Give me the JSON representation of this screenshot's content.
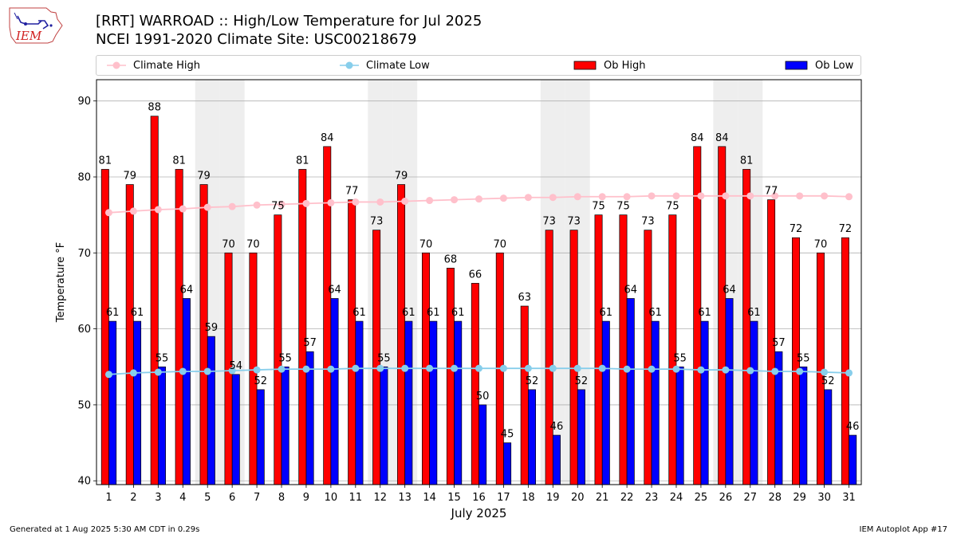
{
  "header": {
    "logo_text": "IEM",
    "title_line1": "[RRT] WARROAD :: High/Low Temperature for Jul 2025",
    "title_line2": "NCEI 1991-2020 Climate Site: USC00218679"
  },
  "footer": {
    "left": "Generated at 1 Aug 2025 5:30 AM CDT in 0.29s",
    "right": "IEM Autoplot App #17"
  },
  "colors": {
    "ob_high": "#ff0000",
    "ob_low": "#0000ff",
    "climate_high": "#ffc0cb",
    "climate_low": "#87ceeb",
    "weekend_band": "#eeeeee",
    "grid": "#b0b0b0"
  },
  "chart_data": {
    "type": "bar",
    "xlabel": "July 2025",
    "ylabel": "Temperature °F",
    "ylim": [
      39.5,
      92.8
    ],
    "yticks": [
      40,
      50,
      60,
      70,
      80,
      90
    ],
    "grid": "horizontal",
    "legend_placement": "top",
    "categories": [
      "1",
      "2",
      "3",
      "4",
      "5",
      "6",
      "7",
      "8",
      "9",
      "10",
      "11",
      "12",
      "13",
      "14",
      "15",
      "16",
      "17",
      "18",
      "19",
      "20",
      "21",
      "22",
      "23",
      "24",
      "25",
      "26",
      "27",
      "28",
      "29",
      "30",
      "31"
    ],
    "weekend_days": [
      5,
      6,
      12,
      13,
      19,
      20,
      26,
      27
    ],
    "series": [
      {
        "name": "Ob High",
        "kind": "bar",
        "values": [
          81,
          79,
          88,
          81,
          79,
          70,
          70,
          75,
          81,
          84,
          77,
          73,
          79,
          70,
          68,
          66,
          70,
          63,
          73,
          73,
          75,
          75,
          73,
          75,
          84,
          84,
          81,
          77,
          72,
          70,
          72
        ]
      },
      {
        "name": "Ob Low",
        "kind": "bar",
        "values": [
          61,
          61,
          55,
          64,
          59,
          54,
          52,
          55,
          57,
          64,
          61,
          55,
          61,
          61,
          61,
          50,
          45,
          52,
          46,
          52,
          61,
          64,
          61,
          55,
          61,
          64,
          61,
          57,
          55,
          52,
          46
        ]
      },
      {
        "name": "Climate High",
        "kind": "line",
        "values": [
          75.3,
          75.5,
          75.7,
          75.8,
          76.0,
          76.1,
          76.3,
          76.4,
          76.5,
          76.6,
          76.7,
          76.7,
          76.8,
          76.9,
          77.0,
          77.1,
          77.2,
          77.3,
          77.3,
          77.4,
          77.4,
          77.4,
          77.5,
          77.5,
          77.5,
          77.5,
          77.5,
          77.5,
          77.5,
          77.5,
          77.4
        ]
      },
      {
        "name": "Climate Low",
        "kind": "line",
        "values": [
          54.0,
          54.2,
          54.3,
          54.4,
          54.4,
          54.5,
          54.6,
          54.7,
          54.7,
          54.7,
          54.8,
          54.8,
          54.8,
          54.8,
          54.8,
          54.8,
          54.8,
          54.8,
          54.8,
          54.8,
          54.8,
          54.7,
          54.7,
          54.7,
          54.6,
          54.6,
          54.5,
          54.4,
          54.4,
          54.3,
          54.2
        ]
      }
    ]
  }
}
